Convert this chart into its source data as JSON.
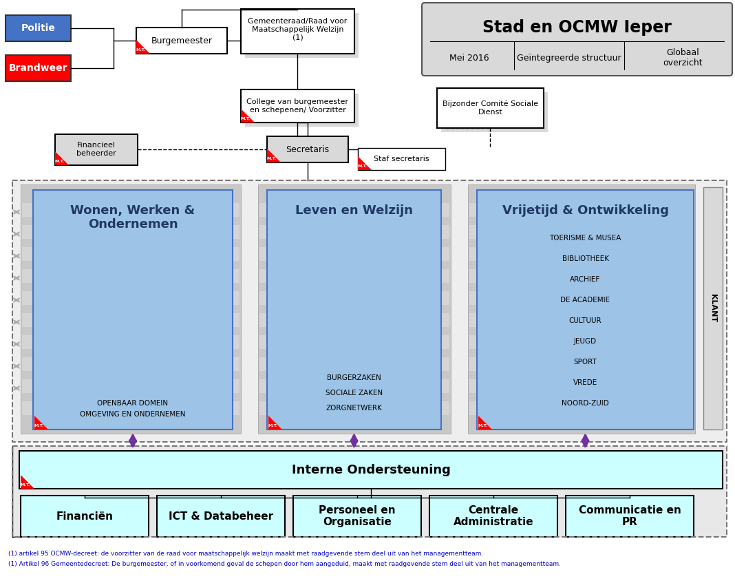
{
  "title": "Stad en OCMW Ieper",
  "subtitle_left": "Mei 2016",
  "subtitle_mid": "Geïntegreerde structuur",
  "subtitle_right": "Globaal\noverzicht",
  "footnote1": "(1) artikel 95 OCMW-decreet: de voorzitter van de raad voor maatschappelijk welzijn maakt met raadgevende stem deel uit van het managementteam.",
  "footnote2": "(1) Artikel 96 Gemeentedecreet: De burgemeester, of in voorkomend geval de schepen door hem aangeduid, maakt met raadgevende stem deel uit van het managementteam.",
  "bg_color": "#ffffff",
  "light_blue": "#9dc3e6",
  "light_cyan": "#ccffff",
  "gray_box": "#d9d9d9",
  "gray_outer": "#bfbfbf",
  "red_color": "#ff0000",
  "blue_box": "#4472c4",
  "dark_blue_text": "#1f3864",
  "purple_arrow": "#7030a0",
  "header_bg": "#d9d9d9",
  "stripe_color": "#b4c7e7",
  "outer_dashed_bg": "#eeeeee"
}
